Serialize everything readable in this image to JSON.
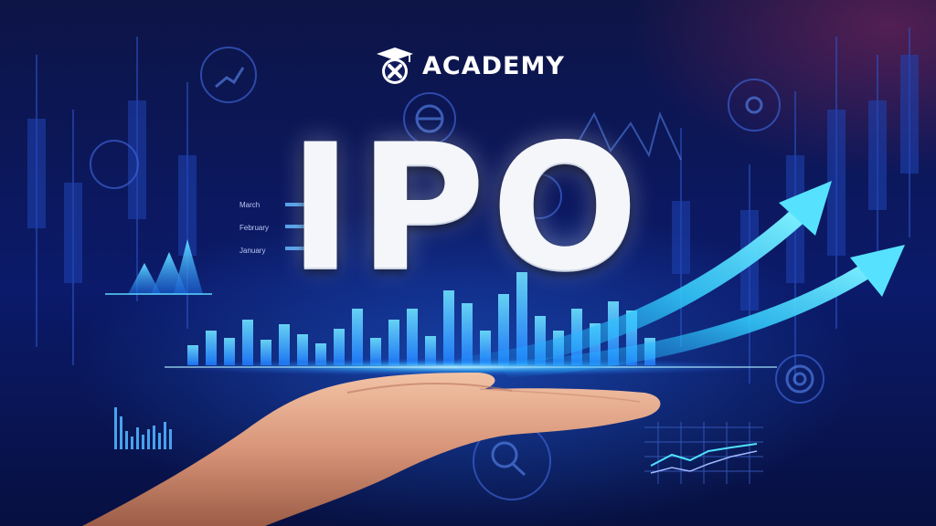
{
  "brand": {
    "name": "ACADEMY",
    "logo_icon": "graduation-cap-x-logo-icon"
  },
  "headline": "IPO",
  "chart_labels": [
    "March",
    "February",
    "January"
  ],
  "colors": {
    "background": "#0b1a6a",
    "accent_cyan": "#37d6ff",
    "headline_text": "#f4f6fa",
    "brand_text": "#ffffff"
  },
  "scene": {
    "main_subject": "open-palm-hand",
    "decorations": [
      "upward-trend-arrows",
      "candlestick-bars",
      "finance-icons"
    ]
  }
}
